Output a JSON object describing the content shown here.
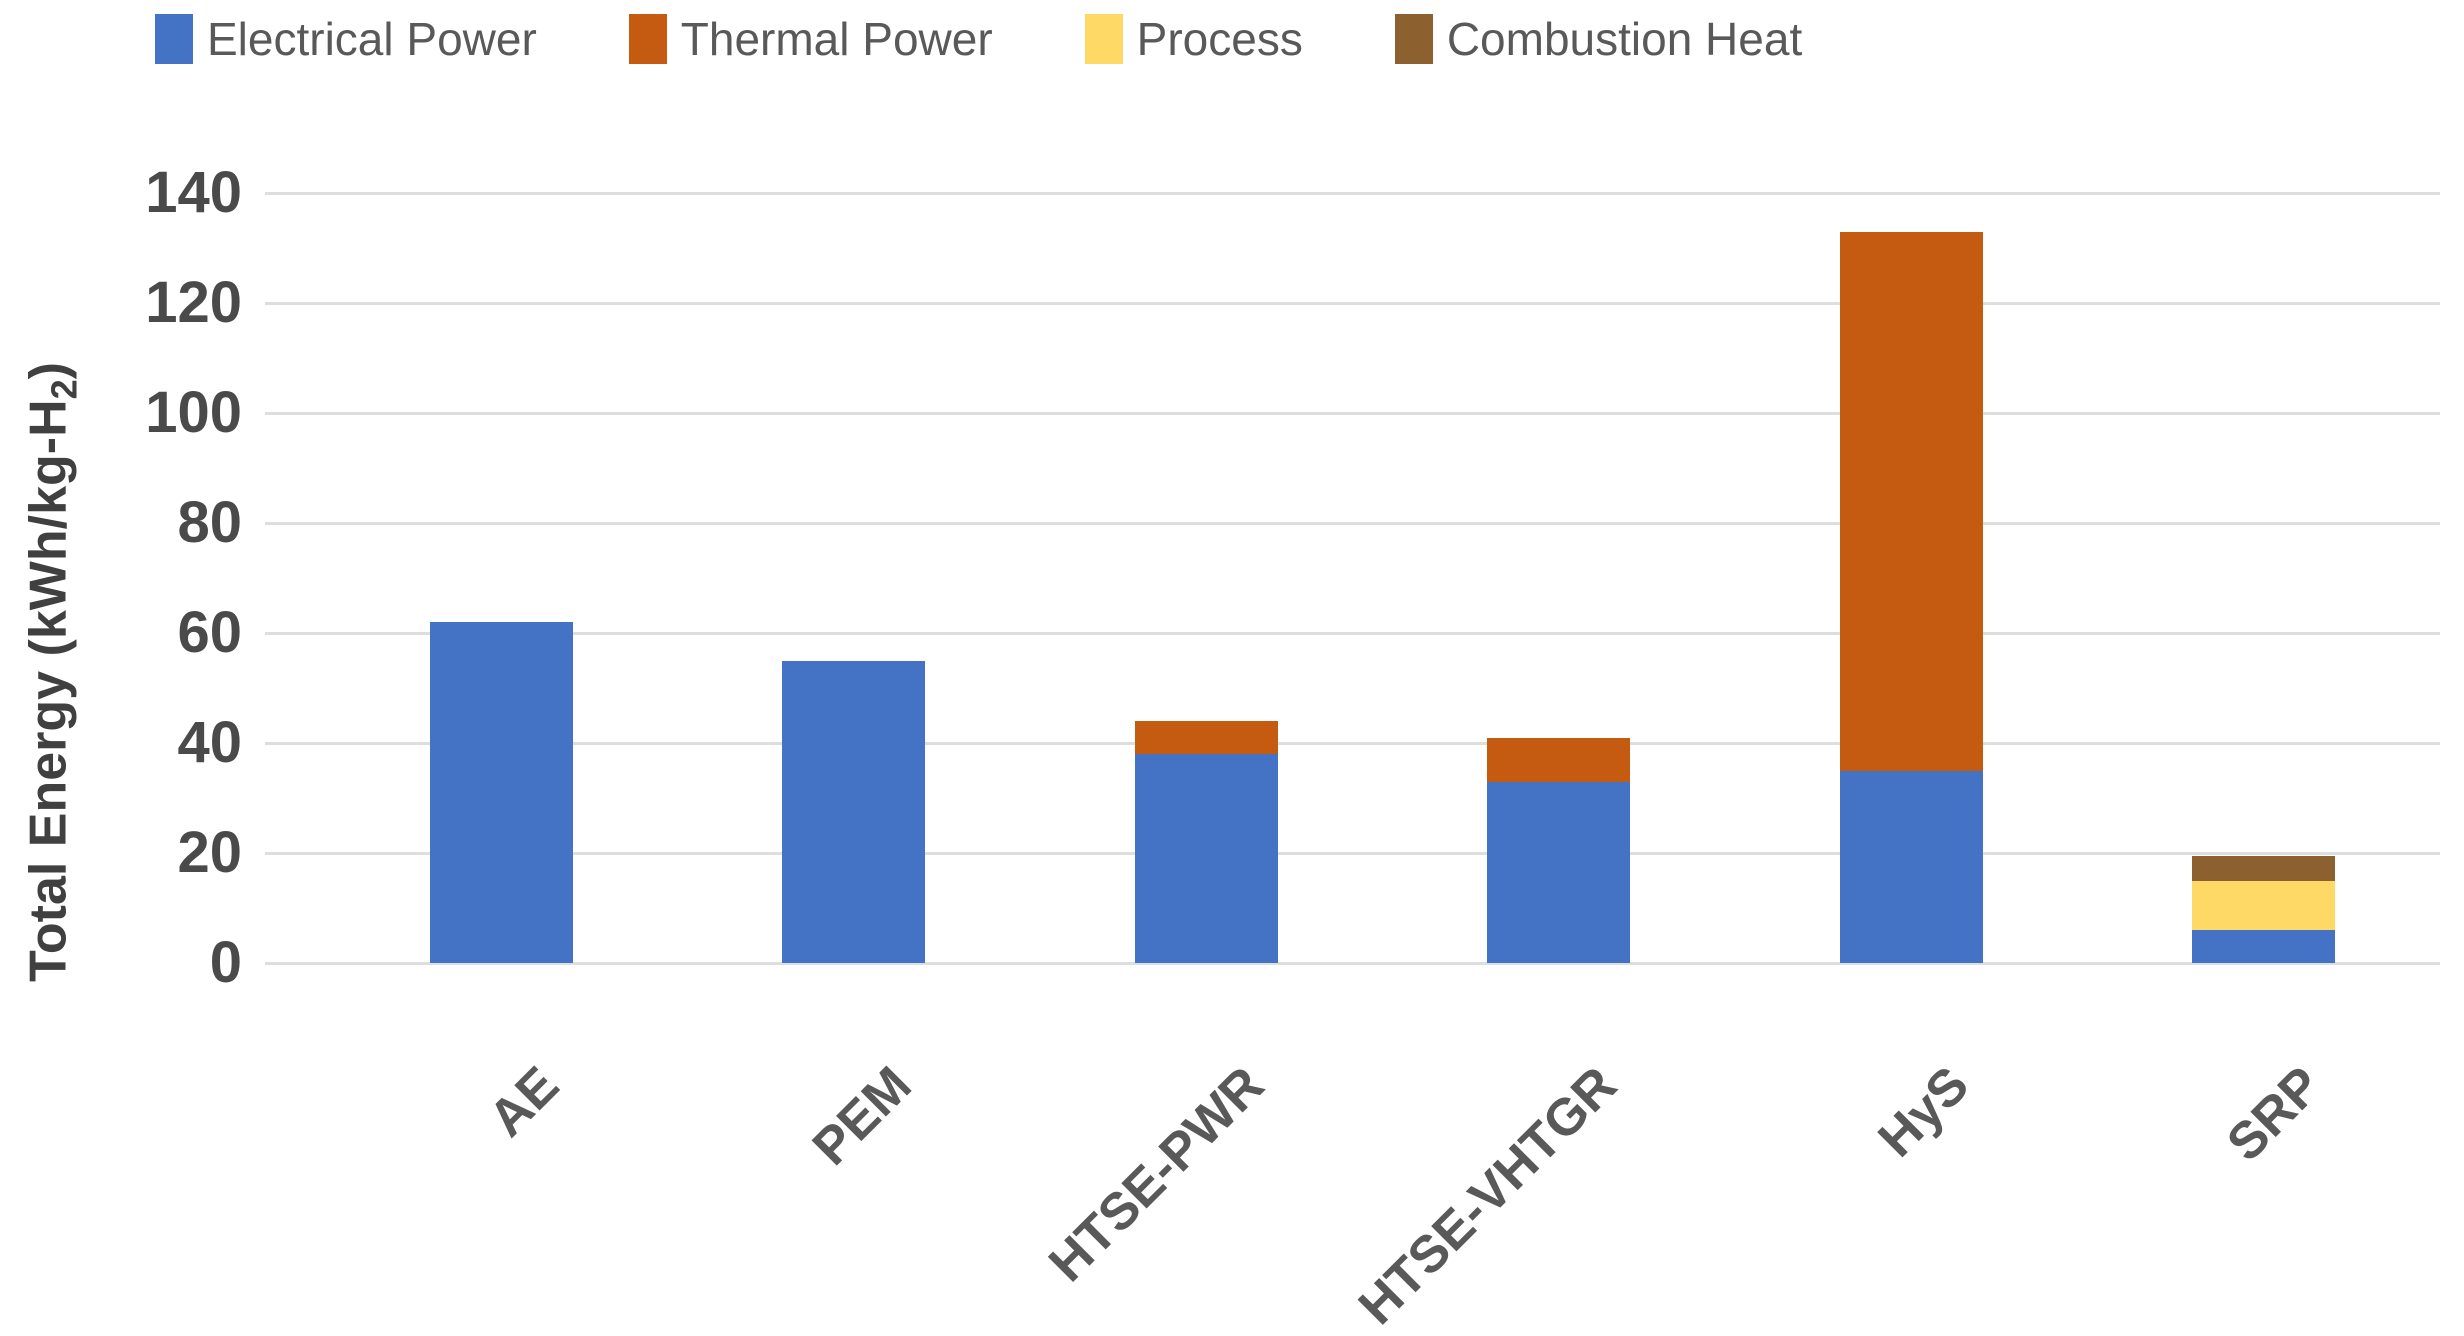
{
  "chart_data": {
    "type": "bar",
    "stacked": true,
    "title": "",
    "xlabel": "",
    "ylabel": {
      "prefix": "Total Energy (kWh/kg-H",
      "sub": "2",
      "suffix": ")"
    },
    "categories": [
      "AE",
      "PEM",
      "HTSE-PWR",
      "HTSE-VHTGR",
      "HyS",
      "SRP"
    ],
    "series": [
      {
        "name": "Electrical Power",
        "color": "#4472C4",
        "values": [
          62,
          55,
          38,
          33,
          35,
          6
        ]
      },
      {
        "name": "Thermal Power",
        "color": "#C55A11",
        "values": [
          0,
          0,
          6,
          8,
          98,
          0
        ]
      },
      {
        "name": "Process",
        "color": "#FFD966",
        "values": [
          0,
          0,
          0,
          0,
          0,
          9
        ]
      },
      {
        "name": "Combustion Heat",
        "color": "#8D602F",
        "values": [
          0,
          0,
          0,
          0,
          0,
          4.5
        ]
      }
    ],
    "totals": [
      62,
      55,
      44,
      41,
      133,
      19.5
    ],
    "ylim": [
      0,
      140
    ],
    "yticks": [
      0,
      20,
      40,
      60,
      80,
      100,
      120,
      140
    ],
    "grid": "horizontal",
    "gridline_color": "#dedede",
    "legend_position": "top",
    "legend_text_color": "#595959",
    "axis_text_color": "#4a4a4a"
  }
}
